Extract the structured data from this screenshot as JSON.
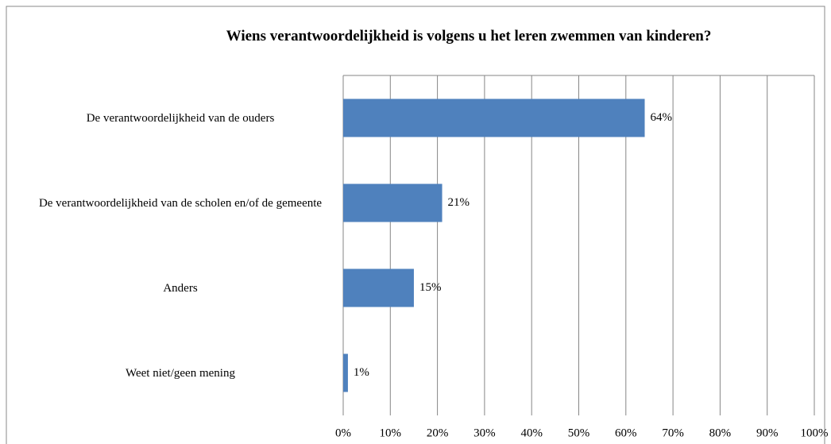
{
  "chart_data": {
    "type": "bar",
    "orientation": "horizontal",
    "title": "Wiens verantwoordelijkheid is volgens u het leren zwemmen van kinderen?",
    "categories": [
      "De verantwoordelijkheid van de ouders",
      "De verantwoordelijkheid van de scholen en/of de gemeente",
      "Anders",
      "Weet niet/geen mening"
    ],
    "values": [
      64,
      21,
      15,
      1
    ],
    "value_labels": [
      "64%",
      "21%",
      "15%",
      "1%"
    ],
    "color": "#4f81bd",
    "xlim": [
      0,
      100
    ],
    "xticks": [
      {
        "value": 0,
        "label": "0%"
      },
      {
        "value": 10,
        "label": "10%"
      },
      {
        "value": 20,
        "label": "20%"
      },
      {
        "value": 30,
        "label": "30%"
      },
      {
        "value": 40,
        "label": "40%"
      },
      {
        "value": 50,
        "label": "50%"
      },
      {
        "value": 60,
        "label": "60%"
      },
      {
        "value": 70,
        "label": "70%"
      },
      {
        "value": 80,
        "label": "80%"
      },
      {
        "value": 90,
        "label": "90%"
      },
      {
        "value": 100,
        "label": "100%"
      }
    ],
    "grid": true
  }
}
